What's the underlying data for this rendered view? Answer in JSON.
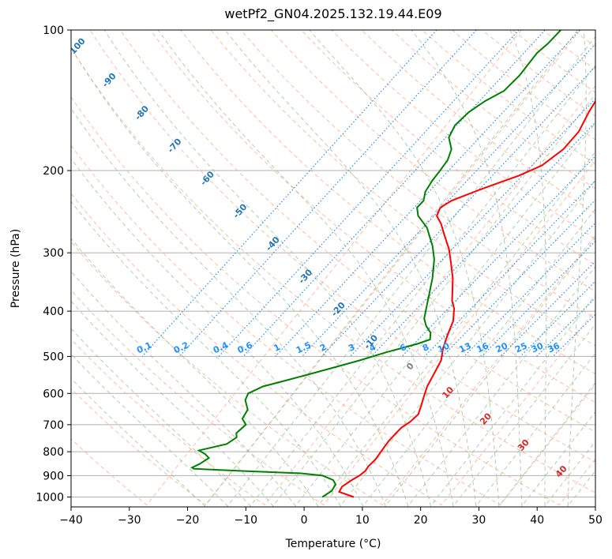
{
  "chart_data": {
    "type": "line",
    "title": "wetPf2_GN04.2025.132.19.44.E09",
    "xlabel": "Temperature (°C)",
    "ylabel": "Pressure (hPa)",
    "xlim": [
      -40,
      50
    ],
    "ylim": [
      1050,
      100
    ],
    "y_scale": "log",
    "grid": true,
    "x_ticks": [
      "−40",
      "−30",
      "−20",
      "−10",
      "0",
      "10",
      "20",
      "30",
      "40",
      "50"
    ],
    "y_ticks": [
      "100",
      "200",
      "300",
      "400",
      "500",
      "600",
      "700",
      "800",
      "900",
      "1000"
    ],
    "x_tick_values": [
      -40,
      -30,
      -20,
      -10,
      0,
      10,
      20,
      30,
      40,
      50
    ],
    "y_tick_values": [
      100,
      200,
      300,
      400,
      500,
      600,
      700,
      800,
      900,
      1000
    ],
    "colors": {
      "temperature": "#ff0000",
      "dewpoint": "#008000",
      "isotherm": "#999999",
      "dry_adiabat": "#ffa07a",
      "moist_adiabat": "#8fbc8f",
      "mixing_ratio": "#1e90ff",
      "annotation_blue": "#1f77b4",
      "annotation_red": "#d62728",
      "annotation_grey": "#7f7f7f"
    },
    "series": [
      {
        "key": "temperature",
        "points": [
          [
            7.2,
            1000
          ],
          [
            4.0,
            975
          ],
          [
            3.8,
            950
          ],
          [
            4.6,
            920
          ],
          [
            5.3,
            900
          ],
          [
            5.7,
            880
          ],
          [
            5.6,
            860
          ],
          [
            5.9,
            830
          ],
          [
            5.8,
            800
          ],
          [
            5.7,
            760
          ],
          [
            5.9,
            730
          ],
          [
            6.1,
            710
          ],
          [
            6.8,
            690
          ],
          [
            7.2,
            665
          ],
          [
            6.6,
            640
          ],
          [
            5.8,
            610
          ],
          [
            5.0,
            580
          ],
          [
            4.4,
            540
          ],
          [
            3.9,
            510
          ],
          [
            2.6,
            480
          ],
          [
            1.6,
            450
          ],
          [
            0.7,
            420
          ],
          [
            -0.8,
            395
          ],
          [
            -2.2,
            380
          ],
          [
            -3.6,
            360
          ],
          [
            -5.1,
            340
          ],
          [
            -7.5,
            315
          ],
          [
            -9.6,
            295
          ],
          [
            -12.3,
            275
          ],
          [
            -14.4,
            260
          ],
          [
            -16.2,
            250
          ],
          [
            -16.7,
            240
          ],
          [
            -15.7,
            232
          ],
          [
            -12.4,
            220
          ],
          [
            -7.5,
            205
          ],
          [
            -4.9,
            195
          ],
          [
            -3.4,
            180
          ],
          [
            -3.1,
            165
          ],
          [
            -4.0,
            150
          ],
          [
            -4.4,
            140
          ],
          [
            -4.6,
            130
          ],
          [
            -4.5,
            125
          ],
          [
            -4.5,
            120
          ],
          [
            -5.3,
            114
          ],
          [
            -6.2,
            108
          ],
          [
            -6.8,
            104
          ],
          [
            -7.0,
            100
          ]
        ]
      },
      {
        "key": "dewpoint",
        "points": [
          [
            1.8,
            1000
          ],
          [
            2.6,
            970
          ],
          [
            2.4,
            940
          ],
          [
            1.4,
            920
          ],
          [
            -1.0,
            900
          ],
          [
            -5.0,
            890
          ],
          [
            -15.0,
            880
          ],
          [
            -24.0,
            870
          ],
          [
            -24.5,
            865
          ],
          [
            -23.7,
            850
          ],
          [
            -22.9,
            825
          ],
          [
            -24.0,
            810
          ],
          [
            -25.6,
            795
          ],
          [
            -21.7,
            770
          ],
          [
            -20.9,
            745
          ],
          [
            -21.5,
            730
          ],
          [
            -21.0,
            700
          ],
          [
            -22.4,
            680
          ],
          [
            -22.7,
            650
          ],
          [
            -24.4,
            620
          ],
          [
            -24.8,
            600
          ],
          [
            -23.2,
            580
          ],
          [
            -19.5,
            560
          ],
          [
            -13.9,
            530
          ],
          [
            -10.1,
            510
          ],
          [
            -6.6,
            490
          ],
          [
            -2.4,
            470
          ],
          [
            -0.8,
            460
          ],
          [
            -1.6,
            445
          ],
          [
            -3.3,
            430
          ],
          [
            -4.6,
            415
          ],
          [
            -5.6,
            395
          ],
          [
            -6.9,
            370
          ],
          [
            -8.6,
            340
          ],
          [
            -10.8,
            310
          ],
          [
            -12.9,
            290
          ],
          [
            -16.3,
            265
          ],
          [
            -19.4,
            250
          ],
          [
            -20.7,
            240
          ],
          [
            -20.5,
            232
          ],
          [
            -21.4,
            222
          ],
          [
            -21.7,
            210
          ],
          [
            -21.7,
            200
          ],
          [
            -21.8,
            190
          ],
          [
            -22.6,
            180
          ],
          [
            -24.6,
            170
          ],
          [
            -25.2,
            160
          ],
          [
            -24.6,
            150
          ],
          [
            -23.3,
            142
          ],
          [
            -21.4,
            135
          ],
          [
            -20.8,
            125
          ],
          [
            -20.8,
            118
          ],
          [
            -20.8,
            112
          ],
          [
            -20.2,
            107
          ],
          [
            -19.8,
            100
          ]
        ]
      }
    ],
    "isotherm_labels": [
      "-100",
      "-90",
      "-80",
      "-70",
      "-60",
      "-50",
      "-40",
      "-30",
      "-20",
      "-10"
    ],
    "isotherm_label_values": [
      -100,
      -90,
      -80,
      -70,
      -60,
      -50,
      -40,
      -30,
      -20,
      -10
    ],
    "mixing_ratio_labels": [
      "0.1",
      "0.2",
      "0.4",
      "0.6",
      "1",
      "1.5",
      "2",
      "3",
      "4",
      "6",
      "8",
      "10",
      "13",
      "16",
      "20",
      "25",
      "30",
      "36"
    ],
    "mixing_ratio_values": [
      0.1,
      0.2,
      0.4,
      0.6,
      1,
      1.5,
      2,
      3,
      4,
      6,
      8,
      10,
      13,
      16,
      20,
      25,
      30,
      36
    ],
    "warm_isotherm_labels": [
      "0",
      "10",
      "20",
      "30",
      "40"
    ],
    "warm_isotherm_values": [
      0,
      10,
      20,
      30,
      40
    ]
  }
}
